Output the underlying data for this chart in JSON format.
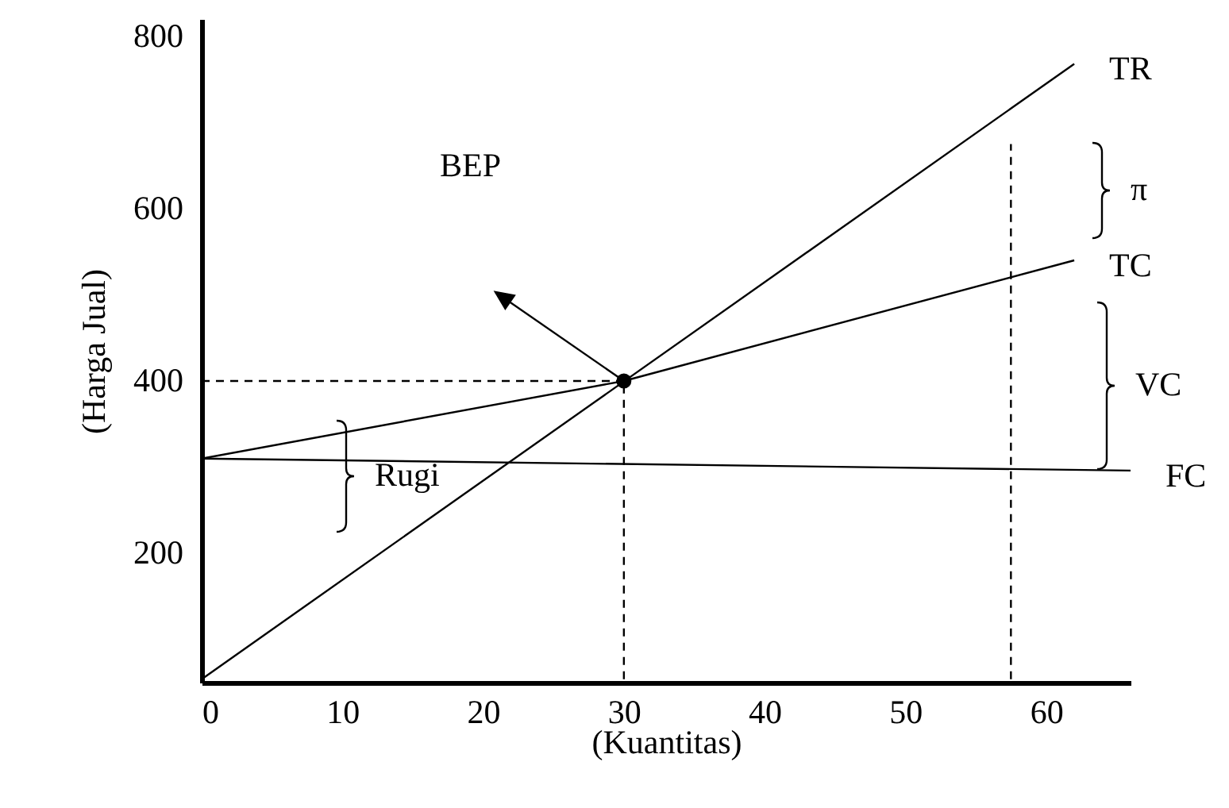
{
  "chart_data": {
    "type": "line",
    "xlabel": "(Kuantitas)",
    "ylabel": "(Harga Jual)",
    "xlim": [
      0,
      66
    ],
    "ylim": [
      50,
      820
    ],
    "xticks": [
      0,
      10,
      20,
      30,
      40,
      50,
      60
    ],
    "yticks": [
      200,
      400,
      600,
      800
    ],
    "grid": false,
    "marker": "none",
    "series": [
      {
        "name": "TR",
        "color": "#000000",
        "x": [
          0,
          62
        ],
        "values": [
          54,
          768
        ],
        "line_style": "solid"
      },
      {
        "name": "TC",
        "color": "#000000",
        "x": [
          0,
          30,
          62
        ],
        "values": [
          310,
          400,
          540
        ],
        "line_style": "solid"
      },
      {
        "name": "FC",
        "color": "#000000",
        "x": [
          0,
          66
        ],
        "values": [
          310,
          296
        ],
        "line_style": "solid"
      },
      {
        "type": "scatter",
        "color": "#000000",
        "x": [
          30
        ],
        "values": [
          400
        ],
        "marker": "circle"
      },
      {
        "color": "#000000",
        "x": [
          0,
          30
        ],
        "values": [
          400,
          400
        ],
        "line_style": "dashed"
      },
      {
        "color": "#000000",
        "x": [
          30,
          30
        ],
        "values": [
          54,
          400
        ],
        "line_style": "dashed"
      },
      {
        "color": "#000000",
        "x": [
          57.5,
          57.5
        ],
        "values": [
          54,
          675
        ],
        "line_style": "dashed"
      }
    ],
    "annotations": [
      "BEP",
      "π",
      "VC",
      "Rugi"
    ]
  }
}
